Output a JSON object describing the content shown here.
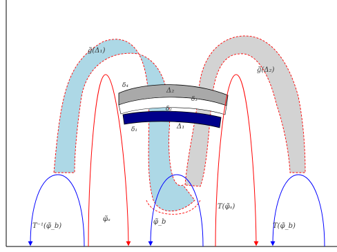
{
  "labels": {
    "g_delta1": "g̃(Δ₁)",
    "g_delta2": "g̃(Δ₂)",
    "delta2_band": "Δ₂",
    "delta1_band": "Δ₁",
    "small_delta2": "δ₂",
    "small_delta3": "δ₃",
    "small_delta4": "δ₄",
    "small_delta1": "δ₁",
    "phi_a": "φ̃ₐ",
    "phi_b": "φ̃_b",
    "T_phi_a": "T(φ̃ₐ)",
    "T_phi_b": "T(φ̃_b)",
    "Tinv_phi_b": "T⁻¹(φ̃_b)"
  },
  "colors": {
    "frame": "#000000",
    "light_blue_fill": "#add8e6",
    "light_gray_fill": "#d3d3d3",
    "band_gray": "#a9a9a9",
    "band_navy": "#00008b",
    "red_curve": "#ff0000",
    "blue_curve": "#0000ff",
    "dashed_red": "#ff0000"
  }
}
